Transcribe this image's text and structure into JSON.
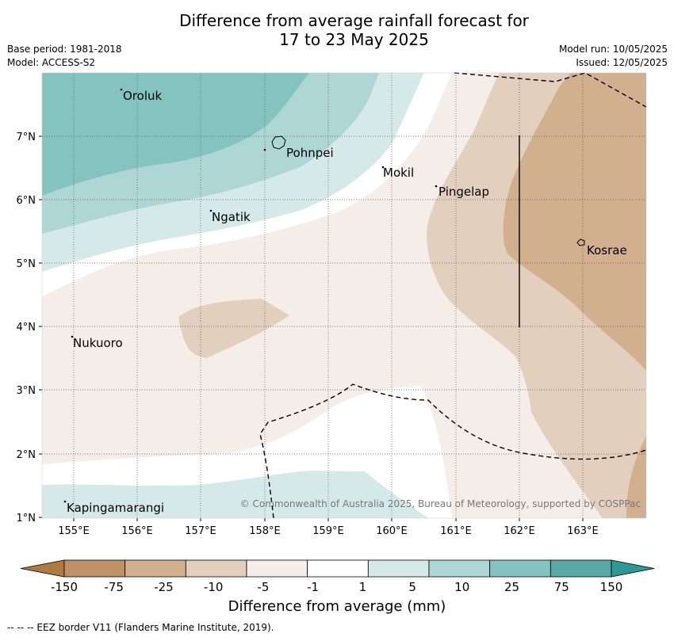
{
  "header": {
    "title_line1": "Difference from average rainfall forecast for",
    "title_line2": "17 to 23 May 2025",
    "base_period": "Base period: 1981-2018",
    "model": "Model: ACCESS-S2",
    "model_run": "Model run: 10/05/2025",
    "issued": "Issued: 12/05/2025"
  },
  "map": {
    "lon_range": [
      154.5,
      164.0
    ],
    "lat_range": [
      1.0,
      8.0
    ],
    "lon_ticks": [
      "155°E",
      "156°E",
      "157°E",
      "158°E",
      "159°E",
      "160°E",
      "161°E",
      "162°E",
      "163°E"
    ],
    "lat_ticks": [
      "1°N",
      "2°N",
      "3°N",
      "4°N",
      "5°N",
      "6°N",
      "7°N"
    ],
    "places": [
      {
        "name": "Oroluk",
        "lon": 155.75,
        "lat": 7.62
      },
      {
        "name": "Pohnpei",
        "lon": 158.35,
        "lat": 6.75
      },
      {
        "name": "Mokil",
        "lon": 159.85,
        "lat": 6.42
      },
      {
        "name": "Pingelap",
        "lon": 160.75,
        "lat": 6.15
      },
      {
        "name": "Ngatik",
        "lon": 157.2,
        "lat": 5.75
      },
      {
        "name": "Kosrae",
        "lon": 163.05,
        "lat": 5.3
      },
      {
        "name": "Nukuoro",
        "lon": 155.0,
        "lat": 3.76
      },
      {
        "name": "Kapingamarangi",
        "lon": 154.9,
        "lat": 1.13
      }
    ],
    "copyright": "© Commonwealth of Australia 2025, Bureau of Meteorology, supported by COSPPac",
    "legend_line": "-- -- -- EEZ border V11 (Flanders Marine Institute, 2019).",
    "colors": {
      "plus75": "#5aa8a6",
      "plus25": "#85c3c1",
      "plus10": "#add6d5",
      "plus5": "#d5e9e8",
      "neutral": "#ffffff",
      "minus5": "#f5eee8",
      "minus10": "#e3cfbe",
      "minus25": "#d2af8f"
    }
  },
  "colorbar": {
    "labels": [
      "-150",
      "-75",
      "-25",
      "-10",
      "-5",
      "-1",
      "1",
      "5",
      "10",
      "25",
      "75",
      "150"
    ],
    "colors": [
      "#ad7a42",
      "#bf9265",
      "#d2af8f",
      "#e3cfbe",
      "#f5eee8",
      "#ffffff",
      "#d5e9e8",
      "#add6d5",
      "#85c3c1",
      "#5aa8a6",
      "#2f9794"
    ],
    "title": "Difference from average (mm)"
  }
}
